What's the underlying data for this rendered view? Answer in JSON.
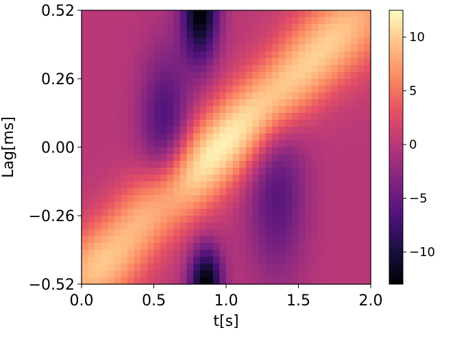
{
  "chart_data": {
    "type": "heatmap",
    "title": "",
    "xlabel": "t[s]",
    "ylabel": "Lag[ms]",
    "xlim": [
      0.0,
      2.0
    ],
    "ylim": [
      -0.52,
      0.52
    ],
    "x_ticks": [
      0.0,
      0.5,
      1.0,
      1.5,
      2.0
    ],
    "x_tick_labels": [
      "0.0",
      "0.5",
      "1.0",
      "1.5",
      "2.0"
    ],
    "y_ticks": [
      -0.52,
      -0.26,
      0.0,
      0.26,
      0.52
    ],
    "y_tick_labels": [
      "−0.52",
      "−0.26",
      "0.00",
      "0.26",
      "0.52"
    ],
    "colormap": "magma",
    "colorbar": {
      "range": [
        -13,
        12.5
      ],
      "ticks": [
        -10,
        -5,
        0,
        5,
        10
      ],
      "tick_labels": [
        "−10",
        "−5",
        "0",
        "5",
        "10"
      ]
    },
    "grid": false,
    "description_of_pattern": {
      "ridge": "bright diagonal band running from lower-left (t~0.5, lag~-0.4) to upper-right (t~1.6, lag~0.5), peak value ~12",
      "dark_regions": "strong negative minima (~-13) near t~0.82 at top edge (lag~0.5) and bottom edge (lag~-0.5); dark band left of ridge near t~0.6, lag~0.1; dark band right of ridge near t~1.35, lag~-0.2",
      "background": "values near 0 elsewhere"
    }
  }
}
